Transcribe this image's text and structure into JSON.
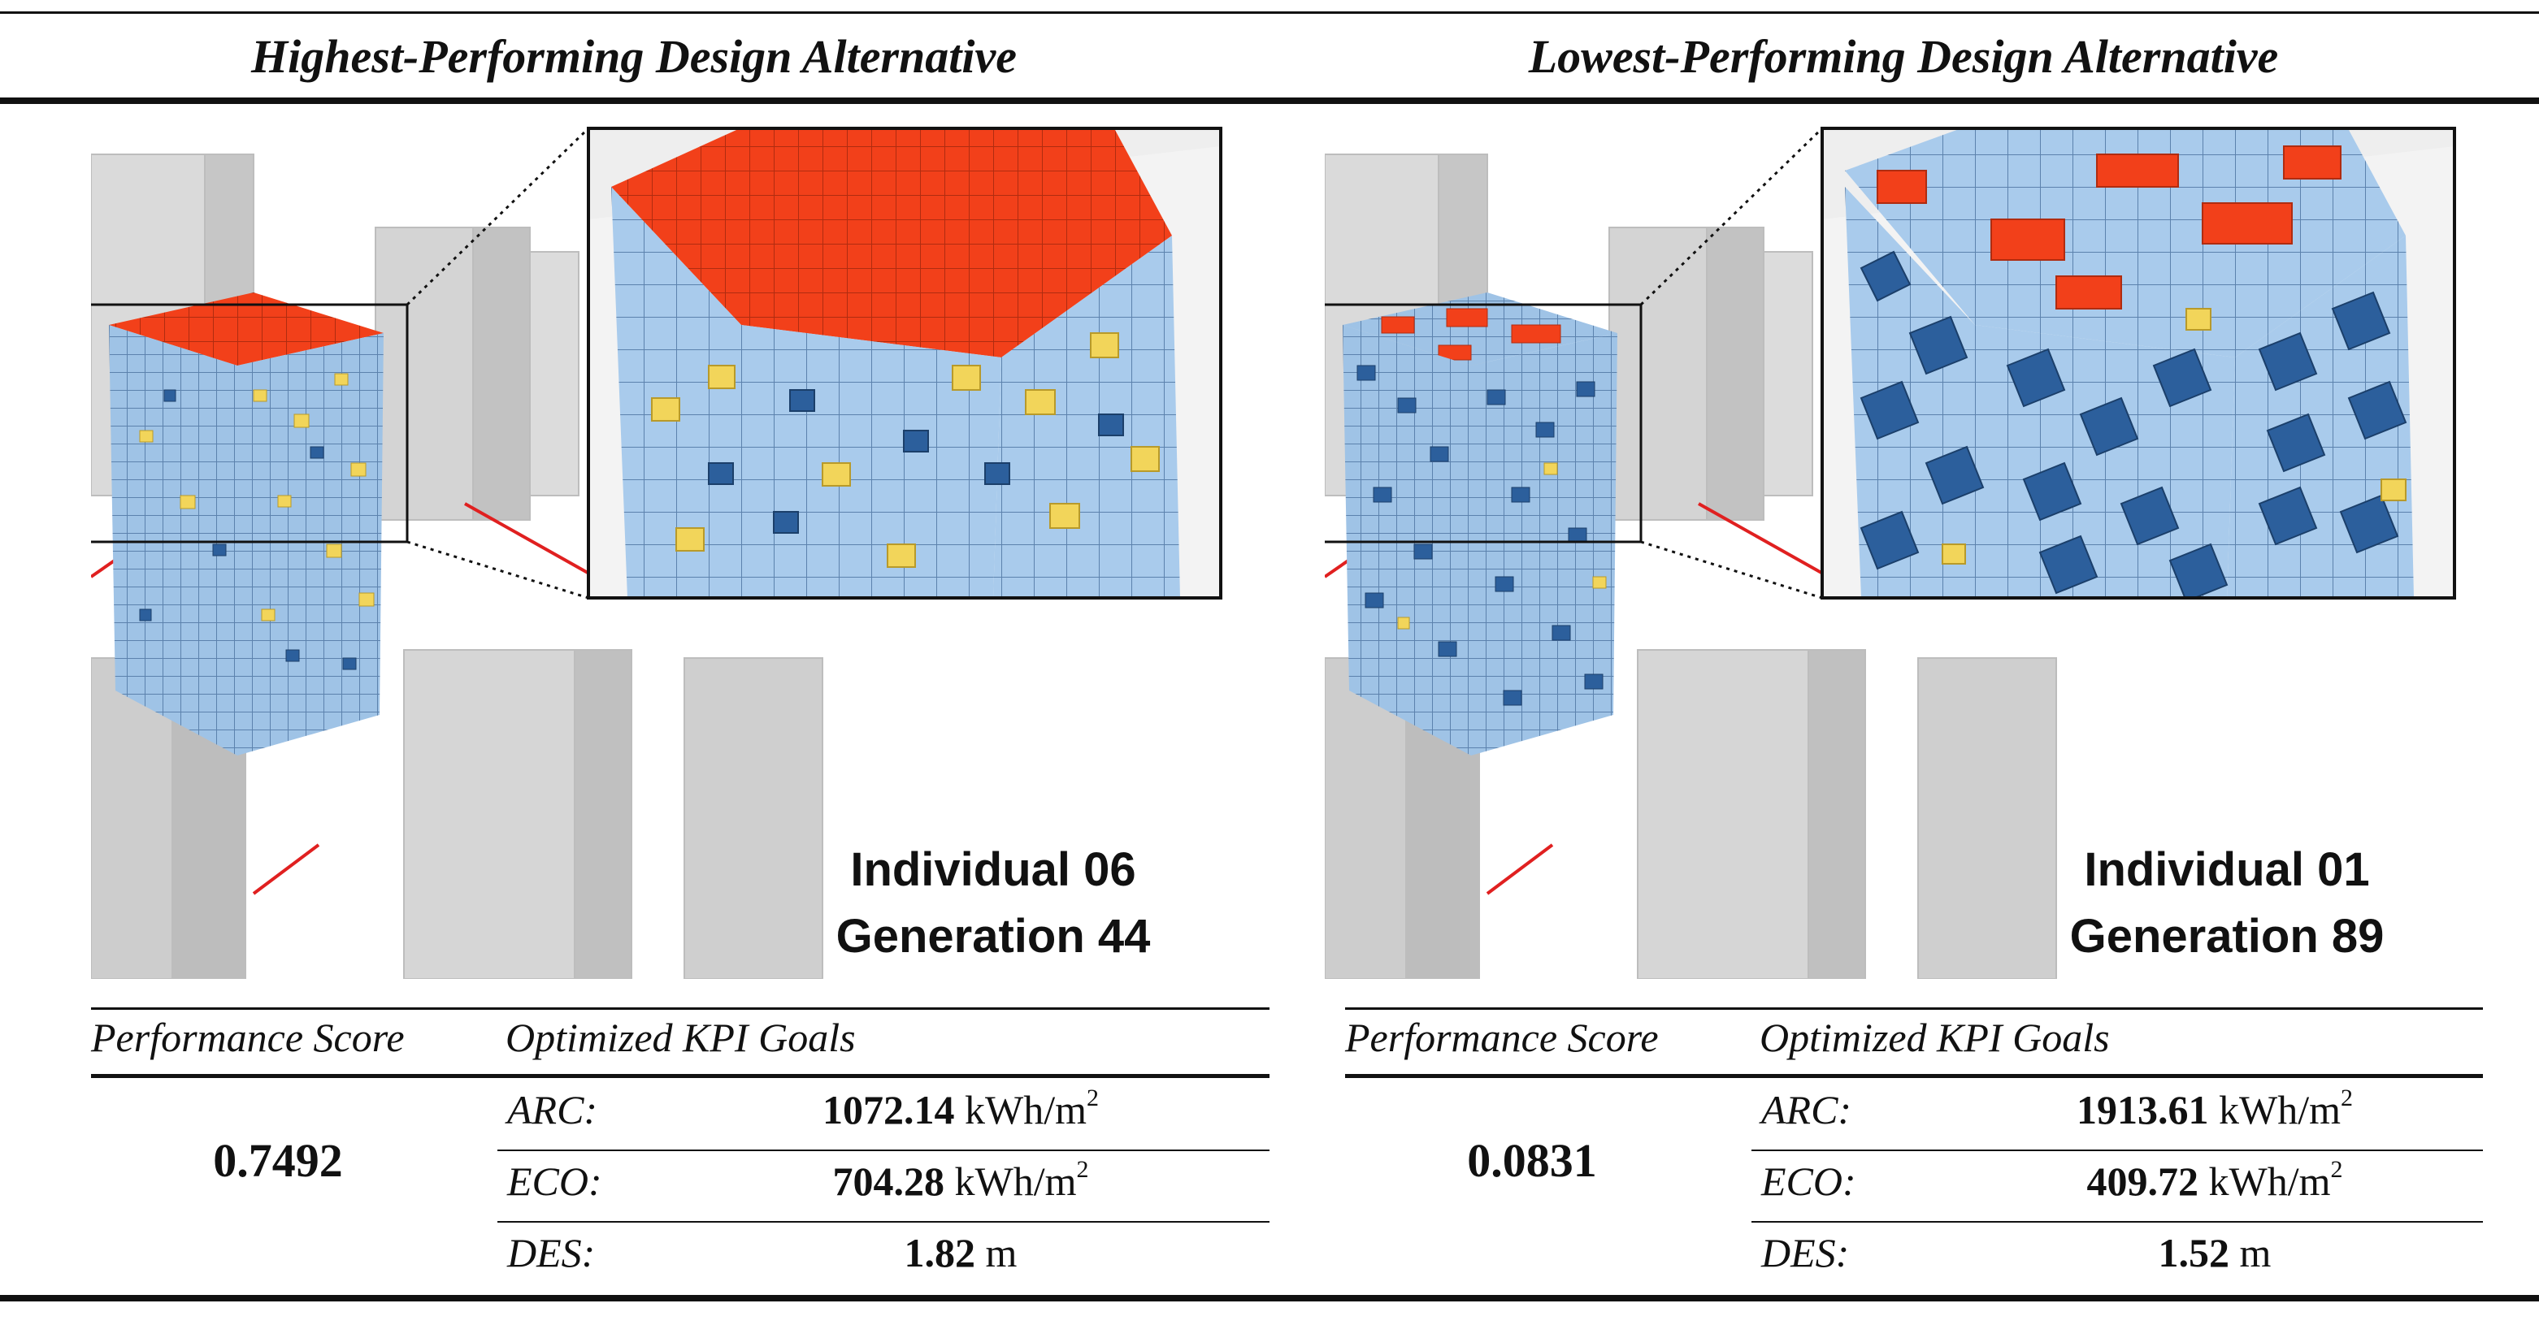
{
  "headings": {
    "left": "Highest-Performing Design Alternative",
    "right": "Lowest-Performing Design Alternative"
  },
  "alternatives": [
    {
      "individual": "Individual 06",
      "generation": "Generation 44",
      "score_label": "Performance Score",
      "goals_label": "Optimized KPI Goals",
      "score": "0.7492",
      "kpis": [
        {
          "name": "ARC:",
          "value": "1072.14",
          "unit": "kWh/m",
          "sup": "2"
        },
        {
          "name": "ECO:",
          "value": "704.28",
          "unit": "kWh/m",
          "sup": "2"
        },
        {
          "name": "DES:",
          "value": "1.82",
          "unit": "m",
          "sup": ""
        }
      ]
    },
    {
      "individual": "Individual 01",
      "generation": "Generation 89",
      "score_label": "Performance Score",
      "goals_label": "Optimized KPI Goals",
      "score": "0.0831",
      "kpis": [
        {
          "name": "ARC:",
          "value": "1913.61",
          "unit": "kWh/m",
          "sup": "2"
        },
        {
          "name": "ECO:",
          "value": "409.72",
          "unit": "kWh/m",
          "sup": "2"
        },
        {
          "name": "DES:",
          "value": "1.52",
          "unit": "m",
          "sup": ""
        }
      ]
    }
  ],
  "colors": {
    "roof": "#f2401a",
    "facade_blue": "#9fc3e6",
    "panel_dark": "#2c5f9c",
    "panel_yellow": "#f2d55a",
    "site_line": "#e02020",
    "context": "#d4d4d4"
  }
}
